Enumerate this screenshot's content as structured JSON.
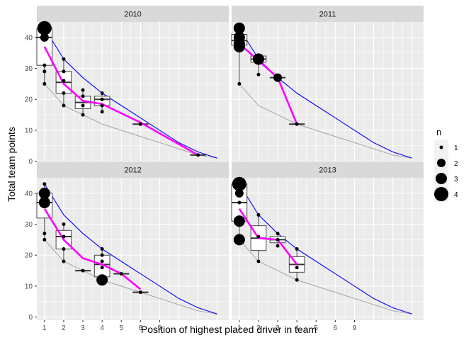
{
  "chart_data": {
    "type": "boxplot",
    "xlabel": "Position of highest placed driver in team",
    "ylabel": "Total team points",
    "x_tick_labels": [
      "1",
      "2",
      "3",
      "4",
      "5",
      "6",
      "9"
    ],
    "ylim": [
      -1,
      45
    ],
    "y_ticks": [
      0,
      10,
      20,
      30,
      40
    ],
    "legend": {
      "title": "n",
      "position": "right",
      "entries": [
        {
          "label": "1",
          "n": 1
        },
        {
          "label": "2",
          "n": 2
        },
        {
          "label": "3",
          "n": 3
        },
        {
          "label": "4",
          "n": 4
        }
      ]
    },
    "colors": {
      "panel_bg": "#EBEBEB",
      "grid": "#FFFFFF",
      "strip_bg": "#D9D9D9",
      "box_fill": "#FFFFFF",
      "box_line": "#333333",
      "points": "#000000",
      "mean_line": "#FF00FF",
      "max_line": "#0000FF",
      "min_line": "#AAAAAA"
    },
    "reference_lines": {
      "max_points_blue": [
        {
          "x": 1,
          "y": 43
        },
        {
          "x": 2,
          "y": 33
        },
        {
          "x": 3,
          "y": 27
        },
        {
          "x": 4,
          "y": 22
        },
        {
          "x": 5,
          "y": 18
        },
        {
          "x": 6,
          "y": 14
        },
        {
          "x": 7,
          "y": 10
        },
        {
          "x": 8,
          "y": 6
        },
        {
          "x": 9,
          "y": 3
        },
        {
          "x": 10,
          "y": 1
        }
      ],
      "min_points_gray": [
        {
          "x": 1,
          "y": 25
        },
        {
          "x": 2,
          "y": 18
        },
        {
          "x": 3,
          "y": 15
        },
        {
          "x": 4,
          "y": 12
        },
        {
          "x": 5,
          "y": 10
        },
        {
          "x": 6,
          "y": 8
        },
        {
          "x": 7,
          "y": 6
        },
        {
          "x": 8,
          "y": 4
        },
        {
          "x": 9,
          "y": 2
        },
        {
          "x": 10,
          "y": 1
        }
      ]
    },
    "panels": [
      {
        "label": "2010",
        "boxes": [
          {
            "x": 1,
            "q1": 31,
            "median": 40,
            "q3": 43,
            "lower": 25,
            "upper": 43
          },
          {
            "x": 2,
            "q1": 22,
            "median": 25.5,
            "q3": 29,
            "lower": 18,
            "upper": 33
          },
          {
            "x": 3,
            "q1": 17,
            "median": 19,
            "q3": 21,
            "lower": 15,
            "upper": 23
          },
          {
            "x": 4,
            "q1": 18,
            "median": 20,
            "q3": 21,
            "lower": 16,
            "upper": 22
          },
          {
            "x": 6,
            "q1": 12,
            "median": 12,
            "q3": 12,
            "lower": 12,
            "upper": 12
          },
          {
            "x": 9,
            "q1": 2,
            "median": 2,
            "q3": 2,
            "lower": 2,
            "upper": 2
          }
        ],
        "points": [
          {
            "x": 1,
            "y": 43,
            "n": 4
          },
          {
            "x": 1,
            "y": 40,
            "n": 2
          },
          {
            "x": 1,
            "y": 31,
            "n": 1
          },
          {
            "x": 1,
            "y": 29,
            "n": 1
          },
          {
            "x": 1,
            "y": 25,
            "n": 1
          },
          {
            "x": 2,
            "y": 33,
            "n": 1
          },
          {
            "x": 2,
            "y": 29,
            "n": 1
          },
          {
            "x": 2,
            "y": 26,
            "n": 1
          },
          {
            "x": 2,
            "y": 22,
            "n": 1
          },
          {
            "x": 2,
            "y": 18,
            "n": 1
          },
          {
            "x": 3,
            "y": 23,
            "n": 1
          },
          {
            "x": 3,
            "y": 21,
            "n": 1
          },
          {
            "x": 3,
            "y": 18,
            "n": 1
          },
          {
            "x": 3,
            "y": 15,
            "n": 1
          },
          {
            "x": 4,
            "y": 22,
            "n": 1
          },
          {
            "x": 4,
            "y": 20,
            "n": 1
          },
          {
            "x": 4,
            "y": 18,
            "n": 1
          },
          {
            "x": 4,
            "y": 16,
            "n": 1
          },
          {
            "x": 6,
            "y": 12,
            "n": 1
          },
          {
            "x": 9,
            "y": 2,
            "n": 1
          }
        ],
        "mean_line": [
          {
            "x": 1,
            "y": 37
          },
          {
            "x": 2,
            "y": 25
          },
          {
            "x": 3,
            "y": 19.5
          },
          {
            "x": 4,
            "y": 18.5
          },
          {
            "x": 6,
            "y": 12.5
          },
          {
            "x": 9,
            "y": 2
          }
        ]
      },
      {
        "label": "2011",
        "boxes": [
          {
            "x": 1,
            "q1": 37.5,
            "median": 39,
            "q3": 41,
            "lower": 25,
            "upper": 43
          },
          {
            "x": 2,
            "q1": 32,
            "median": 33,
            "q3": 34,
            "lower": 28,
            "upper": 34
          },
          {
            "x": 3,
            "q1": 27,
            "median": 27,
            "q3": 27,
            "lower": 27,
            "upper": 27
          },
          {
            "x": 4,
            "q1": 12,
            "median": 12,
            "q3": 12,
            "lower": 12,
            "upper": 12
          }
        ],
        "points": [
          {
            "x": 1,
            "y": 43,
            "n": 3
          },
          {
            "x": 1,
            "y": 40,
            "n": 3
          },
          {
            "x": 1,
            "y": 38,
            "n": 3
          },
          {
            "x": 1,
            "y": 37,
            "n": 3
          },
          {
            "x": 1,
            "y": 25,
            "n": 1
          },
          {
            "x": 2,
            "y": 33,
            "n": 3
          },
          {
            "x": 2,
            "y": 28,
            "n": 1
          },
          {
            "x": 3,
            "y": 27,
            "n": 2
          },
          {
            "x": 4,
            "y": 12,
            "n": 1
          }
        ],
        "mean_line": [
          {
            "x": 1,
            "y": 38
          },
          {
            "x": 2,
            "y": 32.5
          },
          {
            "x": 3,
            "y": 27
          },
          {
            "x": 4,
            "y": 12
          }
        ]
      },
      {
        "label": "2012",
        "boxes": [
          {
            "x": 1,
            "q1": 32,
            "median": 37,
            "q3": 40,
            "lower": 25,
            "upper": 43
          },
          {
            "x": 2,
            "q1": 22,
            "median": 26,
            "q3": 28,
            "lower": 18,
            "upper": 30
          },
          {
            "x": 3,
            "q1": 15,
            "median": 15,
            "q3": 15,
            "lower": 15,
            "upper": 15
          },
          {
            "x": 4,
            "q1": 13,
            "median": 17,
            "q3": 20,
            "lower": 12,
            "upper": 22
          },
          {
            "x": 5,
            "q1": 14,
            "median": 14,
            "q3": 14,
            "lower": 14,
            "upper": 14
          },
          {
            "x": 6,
            "q1": 8,
            "median": 8,
            "q3": 8,
            "lower": 8,
            "upper": 8
          }
        ],
        "points": [
          {
            "x": 1,
            "y": 43,
            "n": 1
          },
          {
            "x": 1,
            "y": 40,
            "n": 3
          },
          {
            "x": 1,
            "y": 37,
            "n": 3
          },
          {
            "x": 1,
            "y": 27,
            "n": 1
          },
          {
            "x": 1,
            "y": 25,
            "n": 1
          },
          {
            "x": 2,
            "y": 30,
            "n": 1
          },
          {
            "x": 2,
            "y": 26,
            "n": 1
          },
          {
            "x": 2,
            "y": 22,
            "n": 1
          },
          {
            "x": 2,
            "y": 18,
            "n": 1
          },
          {
            "x": 3,
            "y": 15,
            "n": 1
          },
          {
            "x": 4,
            "y": 22,
            "n": 1
          },
          {
            "x": 4,
            "y": 20,
            "n": 1
          },
          {
            "x": 4,
            "y": 18,
            "n": 1
          },
          {
            "x": 4,
            "y": 16,
            "n": 1
          },
          {
            "x": 4,
            "y": 12,
            "n": 3
          },
          {
            "x": 5,
            "y": 14,
            "n": 1
          },
          {
            "x": 6,
            "y": 8,
            "n": 1
          }
        ],
        "mean_line": [
          {
            "x": 1,
            "y": 35
          },
          {
            "x": 2,
            "y": 25
          },
          {
            "x": 3,
            "y": 19
          },
          {
            "x": 4,
            "y": 17
          },
          {
            "x": 5,
            "y": 14
          },
          {
            "x": 6,
            "y": 9
          }
        ]
      },
      {
        "label": "2013",
        "boxes": [
          {
            "x": 1,
            "q1": 31,
            "median": 37,
            "q3": 43,
            "lower": 25,
            "upper": 43
          },
          {
            "x": 2,
            "q1": 21.5,
            "median": 25.5,
            "q3": 29.5,
            "lower": 18,
            "upper": 33
          },
          {
            "x": 3,
            "q1": 24,
            "median": 25,
            "q3": 26,
            "lower": 23,
            "upper": 27
          },
          {
            "x": 4,
            "q1": 14.5,
            "median": 17,
            "q3": 19.5,
            "lower": 12,
            "upper": 22
          }
        ],
        "points": [
          {
            "x": 1,
            "y": 43,
            "n": 4
          },
          {
            "x": 1,
            "y": 40,
            "n": 2
          },
          {
            "x": 1,
            "y": 37,
            "n": 1
          },
          {
            "x": 1,
            "y": 31,
            "n": 3
          },
          {
            "x": 1,
            "y": 25,
            "n": 3
          },
          {
            "x": 2,
            "y": 33,
            "n": 1
          },
          {
            "x": 2,
            "y": 26,
            "n": 1
          },
          {
            "x": 2,
            "y": 18,
            "n": 1
          },
          {
            "x": 3,
            "y": 27,
            "n": 1
          },
          {
            "x": 3,
            "y": 25,
            "n": 1
          },
          {
            "x": 3,
            "y": 23,
            "n": 1
          },
          {
            "x": 4,
            "y": 22,
            "n": 1
          },
          {
            "x": 4,
            "y": 16,
            "n": 1
          },
          {
            "x": 4,
            "y": 12,
            "n": 1
          }
        ],
        "mean_line": [
          {
            "x": 1,
            "y": 35
          },
          {
            "x": 2,
            "y": 25.5
          },
          {
            "x": 3,
            "y": 25
          },
          {
            "x": 4,
            "y": 17
          }
        ]
      }
    ]
  }
}
